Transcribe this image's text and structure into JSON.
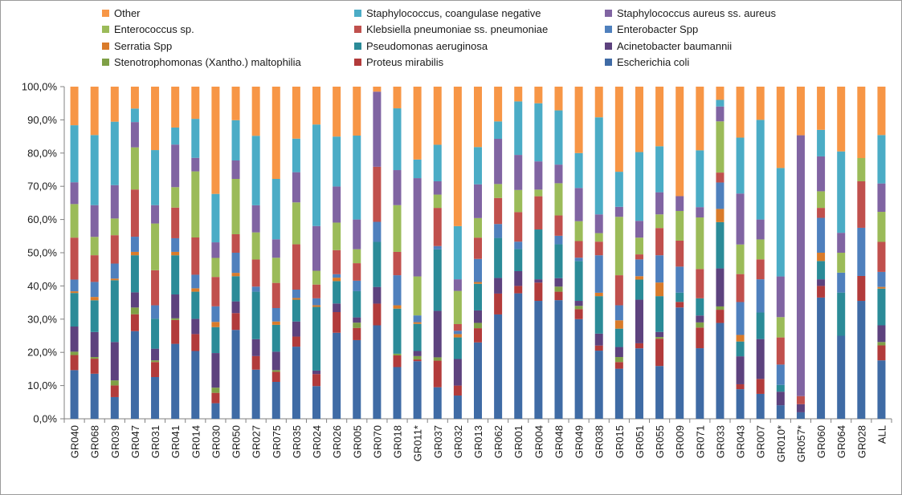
{
  "chart_data": {
    "type": "bar",
    "stacked": true,
    "percent": true,
    "title": "",
    "xlabel": "",
    "ylabel": "",
    "ylim": [
      0,
      100
    ],
    "y_ticks": [
      "0,0%",
      "10,0%",
      "20,0%",
      "30,0%",
      "40,0%",
      "50,0%",
      "60,0%",
      "70,0%",
      "80,0%",
      "90,0%",
      "100,0%"
    ],
    "grid": false,
    "legend_position": "top",
    "categories": [
      "GR040",
      "GR068",
      "GR039",
      "GR047",
      "GR031",
      "GR041",
      "GR014",
      "GR030",
      "GR050",
      "GR027",
      "GR075",
      "GR035",
      "GR024",
      "GR026",
      "GR005",
      "GR070",
      "GR018",
      "GR011*",
      "GR037",
      "GR032",
      "GR013",
      "GR062",
      "GR001",
      "GR004",
      "GR048",
      "GR049",
      "GR038",
      "GR015",
      "GR051",
      "GR055",
      "GR009",
      "GR071",
      "GR033",
      "GR043",
      "GR007",
      "GR010*",
      "GR057*",
      "GR060",
      "GR064",
      "GR028",
      "ALL"
    ],
    "legend_order": [
      "Other",
      "Staphylococcus, coangulase negative",
      "Staphylococcus aureus ss. aureus",
      "Enterococcus sp.",
      "Klebsiella pneumoniae ss. pneumoniae",
      "Enterobacter Spp",
      "Serratia Spp",
      "Pseudomonas aeruginosa",
      "Acinetobacter baumannii",
      "Stenotrophomonas (Xantho.) maltophilia",
      "Proteus mirabilis",
      "Escherichia coli"
    ],
    "series": [
      {
        "name": "Escherichia coli",
        "color": "#3f6ba5",
        "values": [
          14.5,
          13.5,
          6.5,
          26,
          12.5,
          22,
          20,
          4.5,
          26.5,
          14.5,
          11,
          21.5,
          9.5,
          25,
          22.5,
          28,
          15.5,
          17,
          9.5,
          7,
          21.5,
          30,
          34,
          35.5,
          35,
          30,
          20,
          15,
          21,
          15.5,
          30,
          20.5,
          29,
          9,
          7.5,
          4,
          2,
          36.5,
          25,
          35.5,
          17.5
        ]
      },
      {
        "name": "Proteus mirabilis",
        "color": "#b23b3b",
        "values": [
          4.5,
          4.5,
          3.5,
          5,
          4.5,
          7,
          5,
          3,
          5,
          4,
          3,
          3,
          3.5,
          6,
          3.5,
          6.5,
          3.5,
          0.5,
          8,
          3,
          4,
          6,
          2,
          5.5,
          2.5,
          3,
          1.5,
          2,
          1.5,
          8,
          1.5,
          6,
          4,
          1.5,
          4.5,
          0,
          0,
          3.5,
          0,
          7.5,
          4.5
        ]
      },
      {
        "name": "Stenotrophomonas (Xantho.) maltophilia",
        "color": "#7fa046",
        "values": [
          1,
          0.5,
          1.5,
          2,
          0.5,
          0.5,
          0,
          1.5,
          0,
          0,
          0.5,
          0,
          0,
          0,
          1.5,
          0,
          0.5,
          1,
          1,
          0,
          1.5,
          0,
          0,
          0,
          1.5,
          1,
          0,
          1.5,
          0,
          0.5,
          0,
          1.5,
          1,
          0,
          0,
          0,
          0,
          0,
          0,
          0,
          1
        ]
      },
      {
        "name": "Acinetobacter baumannii",
        "color": "#5d427e",
        "values": [
          7.5,
          7.5,
          11.5,
          4.5,
          3.5,
          7,
          4.5,
          10,
          3.5,
          5,
          5.5,
          4.5,
          1,
          2.5,
          1.5,
          5,
          0,
          1.5,
          14,
          8,
          3.5,
          4.5,
          4,
          1,
          2.5,
          1.5,
          3.5,
          3,
          13,
          1.5,
          0,
          2,
          11.5,
          8.5,
          12,
          4,
          2.5,
          2,
          0,
          0,
          5
        ]
      },
      {
        "name": "Pseudomonas aeruginosa",
        "color": "#2b8b98",
        "values": [
          10,
          9.5,
          18.5,
          11,
          9,
          11.5,
          8,
          7.5,
          7.5,
          14,
          8,
          6.5,
          18.5,
          6.5,
          7.5,
          13.5,
          13.5,
          8,
          18.5,
          6.5,
          7.5,
          11.5,
          6,
          15,
          10,
          12,
          11,
          5.5,
          6,
          10.5,
          2.5,
          5,
          14,
          4.5,
          8,
          2,
          0,
          5.5,
          13,
          0,
          11
        ]
      },
      {
        "name": "Serratia Spp",
        "color": "#d97b2a",
        "values": [
          0.5,
          1,
          0.5,
          1,
          0,
          1,
          1,
          1.5,
          1,
          0,
          1,
          0.5,
          0.5,
          1,
          0,
          0,
          1,
          0.5,
          0,
          1,
          0.5,
          0,
          0,
          0,
          0,
          0,
          1,
          2.5,
          1,
          4,
          0,
          0,
          4,
          2,
          0,
          0,
          0,
          2.5,
          0,
          0,
          0.5
        ]
      },
      {
        "name": "Enterobacter Spp",
        "color": "#4f80bd",
        "values": [
          3.5,
          4.5,
          4.5,
          4.5,
          4,
          4,
          4,
          4.5,
          6,
          1.5,
          4,
          2.5,
          2,
          1,
          3,
          6,
          9,
          2,
          1,
          1,
          6.5,
          4,
          2,
          0,
          2.5,
          1,
          11,
          4.5,
          5,
          8,
          7,
          0,
          8,
          10,
          10,
          6,
          0,
          10.5,
          6,
          14.5,
          4.5
        ]
      },
      {
        "name": "Klebsiella pneumoniae ss. pneumoniae",
        "color": "#c0504d",
        "values": [
          12.5,
          8,
          8.5,
          14,
          10.5,
          9,
          11,
          8.5,
          5.5,
          8,
          7.5,
          13.5,
          4,
          7,
          5,
          16.5,
          7,
          0,
          11.5,
          2,
          6,
          7.5,
          8,
          10,
          6,
          5,
          4,
          9,
          1.5,
          8,
          7,
          8.5,
          3,
          8.5,
          6,
          8,
          2.5,
          3,
          0,
          14,
          9
        ]
      },
      {
        "name": "Enterococcus sp.",
        "color": "#9bbb59",
        "values": [
          10,
          5.5,
          5,
          12.5,
          14,
          6,
          19.5,
          5.5,
          16.5,
          8,
          7.5,
          12.5,
          4,
          8,
          4,
          0,
          14,
          11.5,
          4,
          10,
          5.5,
          4,
          6,
          2,
          9.5,
          6,
          2.5,
          17.5,
          5,
          4,
          8,
          15,
          15.5,
          9,
          6,
          6,
          0,
          5,
          6,
          7,
          9
        ]
      },
      {
        "name": "Staphylococcus aureus ss. aureus",
        "color": "#8064a2",
        "values": [
          6.5,
          9.5,
          10,
          7.5,
          5.5,
          12.5,
          4,
          4.5,
          5.5,
          8,
          5.5,
          9,
          13,
          10.5,
          8.5,
          22.5,
          10.5,
          29,
          4,
          3.5,
          9.5,
          13,
          9.5,
          8.5,
          5.5,
          10,
          5.5,
          3,
          5,
          6.5,
          4,
          3,
          4.5,
          15.5,
          6,
          12,
          80.5,
          10.5,
          6,
          0,
          8.5
        ]
      },
      {
        "name": "Staphylococcus, coangulase negative",
        "color": "#4bacc6",
        "values": [
          17,
          21,
          19,
          4,
          16.5,
          5,
          11.5,
          14,
          12,
          20.5,
          18,
          10,
          29.5,
          14.5,
          24,
          0,
          18.5,
          5.5,
          11,
          16,
          10.5,
          5,
          14.5,
          17.5,
          16,
          10.5,
          28.5,
          10.5,
          20.5,
          13.5,
          0,
          16.5,
          2,
          17,
          30,
          32,
          0,
          8,
          24.5,
          0,
          14.5
        ]
      },
      {
        "name": "Other",
        "color": "#f79646",
        "values": [
          11.5,
          14.5,
          10.5,
          6.5,
          19,
          12,
          9.5,
          31,
          10,
          14.5,
          27.5,
          15.5,
          11,
          14.5,
          14,
          1.5,
          6.5,
          21.5,
          17.5,
          42,
          17,
          10,
          4,
          5,
          7,
          20,
          9,
          25.5,
          19.5,
          17.5,
          29.5,
          18.5,
          4,
          15.5,
          10,
          24,
          15,
          13,
          19.5,
          21.5,
          14.5
        ]
      }
    ]
  }
}
